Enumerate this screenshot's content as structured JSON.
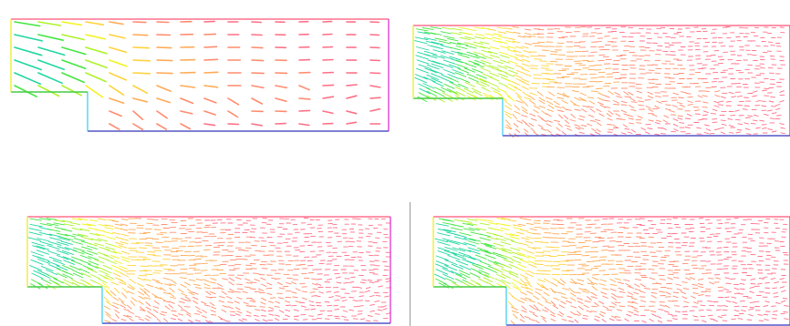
{
  "figure": {
    "panels": [
      {
        "id": "p1",
        "vector_density": "coarse",
        "arrow_length_scale": 1.0
      },
      {
        "id": "p2",
        "vector_density": "dense",
        "arrow_length_scale": 0.9
      },
      {
        "id": "p3",
        "vector_density": "dense",
        "arrow_length_scale": 0.9
      },
      {
        "id": "p4",
        "vector_density": "dense",
        "arrow_length_scale": 0.9
      }
    ],
    "colors": {
      "colormap": [
        "#ff6f86",
        "#ff8b6e",
        "#ffaa55",
        "#ffd23c",
        "#f4f21f",
        "#aef22a",
        "#43e640",
        "#1fd6a0",
        "#2ab8e8"
      ],
      "wall_top": "#ff5577",
      "wall_right": "#dd22cc",
      "wall_bottom": "#3333bb",
      "step_vertical": "#33ccee",
      "step_horizontal": "#44cc44",
      "inlet": "#eeee33"
    }
  }
}
